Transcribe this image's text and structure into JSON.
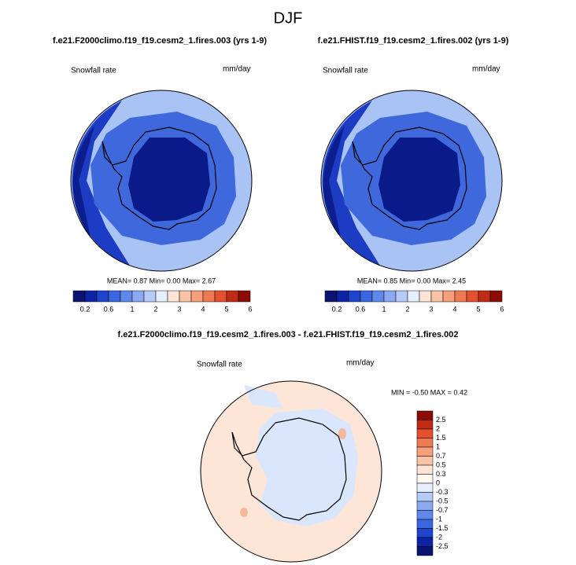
{
  "title": "DJF",
  "panels": [
    {
      "title": "f.e21.F2000climo.f19_f19.cesm2_1.fires.003 (yrs 1-9)",
      "variable": "Snowfall rate",
      "units": "mm/day",
      "stats": "MEAN=  0.87  Min=  0.00  Max=  2.67"
    },
    {
      "title": "f.e21.FHIST.f19_f19.cesm2_1.fires.002 (yrs 1-9)",
      "variable": "Snowfall rate",
      "units": "mm/day",
      "stats": "MEAN=  0.85  Min=  0.00  Max=  2.45"
    }
  ],
  "colorbar": {
    "labels": [
      "0.2",
      "0.6",
      "1",
      "2",
      "3",
      "4",
      "5",
      "6"
    ],
    "colors": [
      "#0b1470",
      "#0d24a8",
      "#1f45cf",
      "#3a66e0",
      "#5f88ea",
      "#8aa9f0",
      "#b6ccf6",
      "#e6efff",
      "#fde4d6",
      "#f9c3a6",
      "#f59f7b",
      "#ef7a52",
      "#e5502f",
      "#c22a16",
      "#8c0c06"
    ]
  },
  "difference": {
    "title": "f.e21.F2000climo.f19_f19.cesm2_1.fires.003 - f.e21.FHIST.f19_f19.cesm2_1.fires.002",
    "variable": "Snowfall rate",
    "units": "mm/day",
    "stats": "MIN =  -0.50 MAX =   0.42",
    "colorbar": {
      "labels": [
        "2.5",
        "2",
        "1.5",
        "1",
        "0.7",
        "0.5",
        "0.3",
        "0",
        "-0.3",
        "-0.5",
        "-0.7",
        "-1",
        "-1.5",
        "-2",
        "-2.5"
      ],
      "colors": [
        "#8c0c06",
        "#c22a16",
        "#e5502f",
        "#ef7a52",
        "#f59f7b",
        "#f9c3a6",
        "#fde4d6",
        "#fff7f0",
        "#e6efff",
        "#b6ccf6",
        "#8aa9f0",
        "#5f88ea",
        "#3a66e0",
        "#1f45cf",
        "#0d24a8",
        "#0b1470"
      ]
    }
  }
}
